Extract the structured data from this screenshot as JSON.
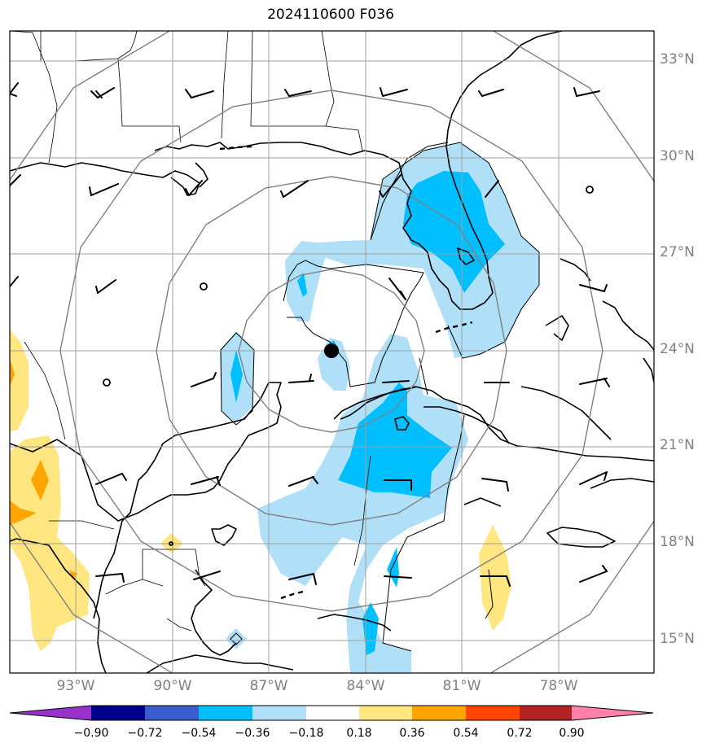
{
  "title": "2024110600 F036",
  "lat_labels": [
    "33°N",
    "30°N",
    "27°N",
    "24°N",
    "21°N",
    "18°N",
    "15°N"
  ],
  "lon_labels": [
    "93°W",
    "90°W",
    "87°W",
    "84°W",
    "81°W",
    "78°W"
  ],
  "colorbar": {
    "ticks": [
      "−0.90",
      "−0.72",
      "−0.54",
      "−0.36",
      "−0.18",
      "0.18",
      "0.36",
      "0.54",
      "0.72",
      "0.90"
    ],
    "colors": [
      "#9932cc",
      "#00008b",
      "#3a5fcd",
      "#00bfff",
      "#b0e0f8",
      "#ffffff",
      "#ffe680",
      "#ffa500",
      "#ff4500",
      "#b22222",
      "#ff80aa"
    ]
  },
  "colors": {
    "light_blue": "#b0e0f8",
    "blue": "#00bfff",
    "light_yellow": "#ffe680",
    "orange": "#ffa500",
    "grid": "#a0a0a0",
    "ring": "#808080"
  },
  "storm_center_marker": "black-dot"
}
